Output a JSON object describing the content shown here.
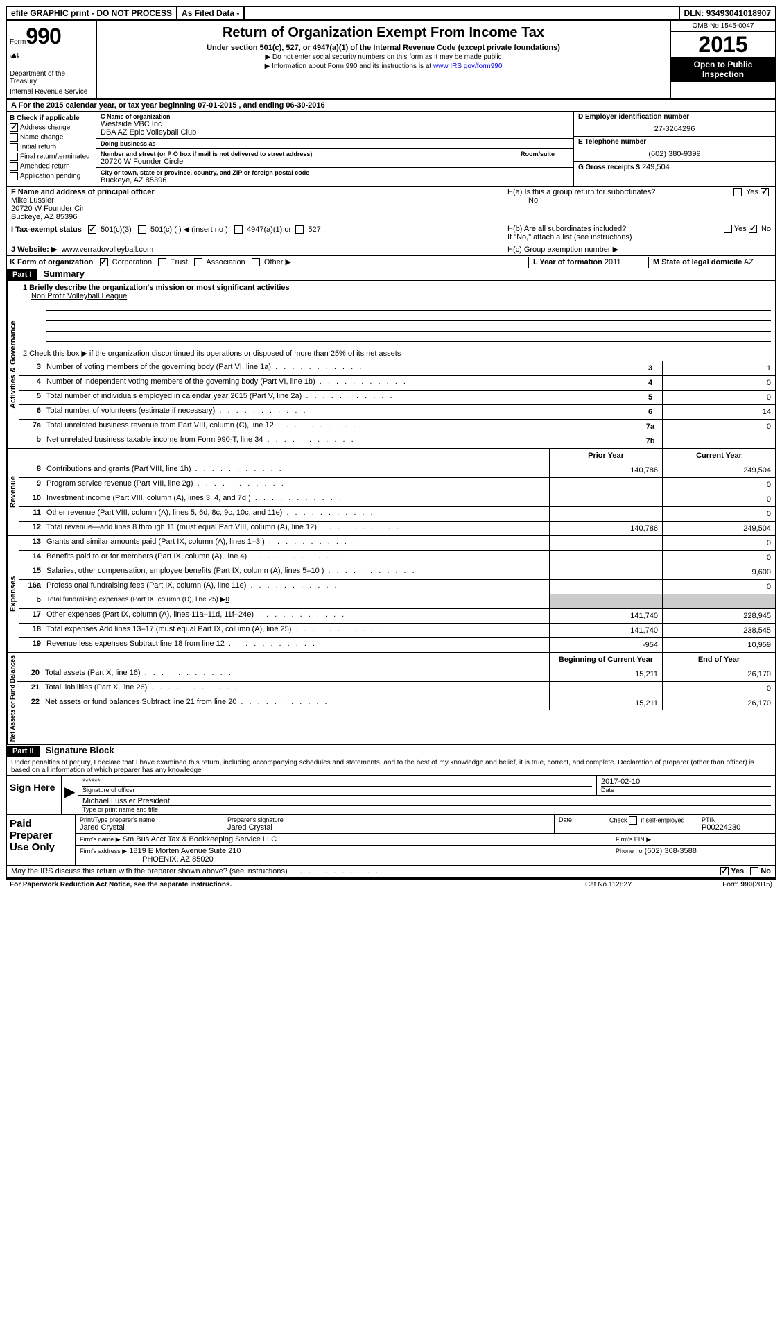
{
  "topbar": {
    "efile": "efile GRAPHIC print - DO NOT PROCESS",
    "asfiled": "As Filed Data -",
    "dln_lbl": "DLN:",
    "dln": "93493041018907"
  },
  "header": {
    "form_word": "Form",
    "form_num": "990",
    "dept": "Department of the Treasury",
    "irs": "Internal Revenue Service",
    "title": "Return of Organization Exempt From Income Tax",
    "sub": "Under section 501(c), 527, or 4947(a)(1) of the Internal Revenue Code (except private foundations)",
    "arrow1": "▶ Do not enter social security numbers on this form as it may be made public",
    "arrow2": "▶ Information about Form 990 and its instructions is at ",
    "link": "www IRS gov/form990",
    "omb": "OMB No 1545-0047",
    "year": "2015",
    "open": "Open to Public Inspection"
  },
  "rowA": {
    "text": "A  For the 2015 calendar year, or tax year beginning 07-01-2015    , and ending 06-30-2016"
  },
  "B": {
    "title": "B  Check if applicable",
    "opts": [
      "Address change",
      "Name change",
      "Initial return",
      "Final return/terminated",
      "Amended return",
      "Application pending"
    ]
  },
  "C": {
    "name_lbl": "C  Name of organization",
    "name1": "Westside VBC Inc",
    "name2": "DBA AZ Epic Volleyball Club",
    "dba_lbl": "Doing business as",
    "addr_lbl": "Number and street (or P O box if mail is not delivered to street address)",
    "room_lbl": "Room/suite",
    "addr": "20720 W Founder Circle",
    "city_lbl": "City or town, state or province, country, and ZIP or foreign postal code",
    "city": "Buckeye, AZ 85396"
  },
  "D": {
    "lbl": "D Employer identification number",
    "val": "27-3264296"
  },
  "E": {
    "lbl": "E Telephone number",
    "val": "(602) 380-9399"
  },
  "G": {
    "lbl": "G Gross receipts $",
    "val": "249,504"
  },
  "F": {
    "lbl": "F  Name and address of principal officer",
    "name": "Mike Lussier",
    "addr1": "20720 W Founder Cir",
    "addr2": "Buckeye, AZ 85396"
  },
  "H": {
    "a": "H(a)  Is this a group return for subordinates?",
    "a_no": "No",
    "b": "H(b)  Are all subordinates included?",
    "b_note": "If \"No,\" attach a list (see instructions)",
    "c": "H(c)  Group exemption number ▶",
    "yes": "Yes",
    "no": "No"
  },
  "I": {
    "lbl": "I   Tax-exempt status",
    "opts": [
      "501(c)(3)",
      "501(c) (  ) ◀ (insert no )",
      "4947(a)(1) or",
      "527"
    ]
  },
  "J": {
    "lbl": "J  Website: ▶",
    "val": "www.verradovolleyball.com"
  },
  "K": {
    "lbl": "K Form of organization",
    "opts": [
      "Corporation",
      "Trust",
      "Association",
      "Other ▶"
    ]
  },
  "L": {
    "lbl": "L Year of formation",
    "val": "2011"
  },
  "M": {
    "lbl": "M State of legal domicile",
    "val": "AZ"
  },
  "part1": {
    "hdr": "Part I",
    "title": "Summary",
    "line1_lbl": "1 Briefly describe the organization's mission or most significant activities",
    "line1_val": "Non Profit Volleyball League",
    "line2": "2  Check this box ▶      if the organization discontinued its operations or disposed of more than 25% of its net assets",
    "governance": [
      {
        "n": "3",
        "d": "Number of voting members of the governing body (Part VI, line 1a)",
        "b": "3",
        "v": "1"
      },
      {
        "n": "4",
        "d": "Number of independent voting members of the governing body (Part VI, line 1b)",
        "b": "4",
        "v": "0"
      },
      {
        "n": "5",
        "d": "Total number of individuals employed in calendar year 2015 (Part V, line 2a)",
        "b": "5",
        "v": "0"
      },
      {
        "n": "6",
        "d": "Total number of volunteers (estimate if necessary)",
        "b": "6",
        "v": "14"
      },
      {
        "n": "7a",
        "d": "Total unrelated business revenue from Part VIII, column (C), line 12",
        "b": "7a",
        "v": "0"
      },
      {
        "n": "b",
        "d": "Net unrelated business taxable income from Form 990-T, line 34",
        "b": "7b",
        "v": ""
      }
    ],
    "prior_hdr": "Prior Year",
    "curr_hdr": "Current Year",
    "revenue": [
      {
        "n": "8",
        "d": "Contributions and grants (Part VIII, line 1h)",
        "p": "140,786",
        "c": "249,504"
      },
      {
        "n": "9",
        "d": "Program service revenue (Part VIII, line 2g)",
        "p": "",
        "c": "0"
      },
      {
        "n": "10",
        "d": "Investment income (Part VIII, column (A), lines 3, 4, and 7d )",
        "p": "",
        "c": "0"
      },
      {
        "n": "11",
        "d": "Other revenue (Part VIII, column (A), lines 5, 6d, 8c, 9c, 10c, and 11e)",
        "p": "",
        "c": "0"
      },
      {
        "n": "12",
        "d": "Total revenue—add lines 8 through 11 (must equal Part VIII, column (A), line 12)",
        "p": "140,786",
        "c": "249,504"
      }
    ],
    "expenses": [
      {
        "n": "13",
        "d": "Grants and similar amounts paid (Part IX, column (A), lines 1–3 )",
        "p": "",
        "c": "0"
      },
      {
        "n": "14",
        "d": "Benefits paid to or for members (Part IX, column (A), line 4)",
        "p": "",
        "c": "0"
      },
      {
        "n": "15",
        "d": "Salaries, other compensation, employee benefits (Part IX, column (A), lines 5–10 )",
        "p": "",
        "c": "9,600"
      },
      {
        "n": "16a",
        "d": "Professional fundraising fees (Part IX, column (A), line 11e)",
        "p": "",
        "c": "0"
      },
      {
        "n": "b",
        "d": "Total fundraising expenses (Part IX, column (D), line 25) ▶",
        "p": "grey",
        "c": "grey",
        "inline": "0"
      },
      {
        "n": "17",
        "d": "Other expenses (Part IX, column (A), lines 11a–11d, 11f–24e)",
        "p": "141,740",
        "c": "228,945"
      },
      {
        "n": "18",
        "d": "Total expenses Add lines 13–17 (must equal Part IX, column (A), line 25)",
        "p": "141,740",
        "c": "238,545"
      },
      {
        "n": "19",
        "d": "Revenue less expenses Subtract line 18 from line 12",
        "p": "-954",
        "c": "10,959"
      }
    ],
    "boy_hdr": "Beginning of Current Year",
    "eoy_hdr": "End of Year",
    "netassets": [
      {
        "n": "20",
        "d": "Total assets (Part X, line 16)",
        "p": "15,211",
        "c": "26,170"
      },
      {
        "n": "21",
        "d": "Total liabilities (Part X, line 26)",
        "p": "",
        "c": "0"
      },
      {
        "n": "22",
        "d": "Net assets or fund balances Subtract line 21 from line 20",
        "p": "15,211",
        "c": "26,170"
      }
    ],
    "vlabels": {
      "gov": "Activities & Governance",
      "rev": "Revenue",
      "exp": "Expenses",
      "net": "Net Assets or Fund Balances"
    }
  },
  "part2": {
    "hdr": "Part II",
    "title": "Signature Block",
    "perjury": "Under penalties of perjury, I declare that I have examined this return, including accompanying schedules and statements, and to the best of my knowledge and belief, it is true, correct, and complete. Declaration of preparer (other than officer) is based on all information of which preparer has any knowledge",
    "sign_here": "Sign Here",
    "stars": "******",
    "sig_officer": "Signature of officer",
    "date": "2017-02-10",
    "date_lbl": "Date",
    "officer_name": "Michael Lussier President",
    "type_name": "Type or print name and title",
    "paid": "Paid Preparer Use Only",
    "prep_name_lbl": "Print/Type preparer's name",
    "prep_name": "Jared Crystal",
    "prep_sig_lbl": "Preparer's signature",
    "prep_sig": "Jared Crystal",
    "prep_date_lbl": "Date",
    "check_self": "Check        if self-employed",
    "ptin_lbl": "PTIN",
    "ptin": "P00224230",
    "firm_name_lbl": "Firm's name    ▶",
    "firm_name": "Sm Bus Acct Tax & Bookkeeping Service LLC",
    "firm_ein_lbl": "Firm's EIN ▶",
    "firm_addr_lbl": "Firm's address ▶",
    "firm_addr1": "1819 E Morten Avenue Suite 210",
    "firm_addr2": "PHOENIX, AZ 85020",
    "phone_lbl": "Phone no",
    "phone": "(602) 368-3588",
    "may_irs": "May the IRS discuss this return with the preparer shown above? (see instructions)",
    "yes": "Yes",
    "no": "No"
  },
  "footer": {
    "paperwork": "For Paperwork Reduction Act Notice, see the separate instructions.",
    "cat": "Cat No 11282Y",
    "form": "Form 990 (2015)"
  }
}
